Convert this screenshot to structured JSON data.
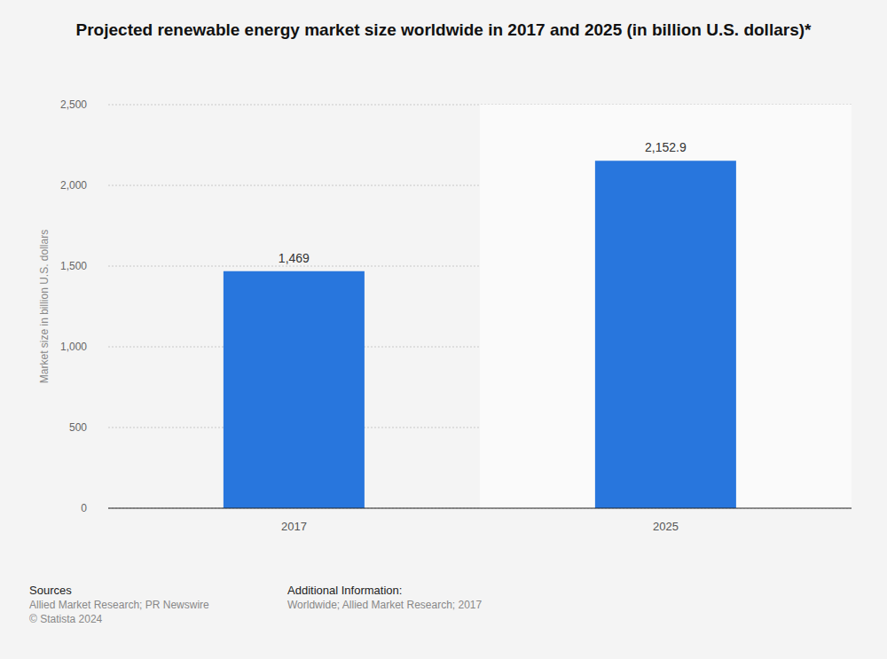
{
  "chart_data": {
    "type": "bar",
    "title": "Projected renewable energy market size worldwide in 2017 and 2025 (in billion U.S. dollars)*",
    "y_label": "Market size in billion U.S. dollars",
    "categories": [
      "2017",
      "2025"
    ],
    "values": [
      1469,
      2152.9
    ],
    "value_labels": [
      "1,469",
      "2,152.9"
    ],
    "color": "#2876dd",
    "ylim": [
      0,
      2500
    ],
    "yticks": [
      0,
      500,
      {
        "value": 1000,
        "label": "1,000"
      },
      {
        "value": 1500,
        "label": "1,500"
      },
      {
        "value": 2000,
        "label": "2,000"
      },
      {
        "value": 2500,
        "label": "2,500"
      }
    ],
    "grid": true,
    "data_labels": true,
    "footer": {
      "sources_title": "Sources",
      "sources": [
        "Allied Market Research; PR Newswire",
        "© Statista 2024"
      ],
      "info_title": "Additional Information:",
      "info": "Worldwide; Allied Market Research; 2017"
    }
  }
}
